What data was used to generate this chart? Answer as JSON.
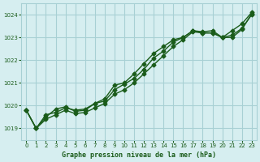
{
  "title": "Graphe pression niveau de la mer (hPa)",
  "background_color": "#d6eef0",
  "grid_color": "#a8d0d4",
  "line_color": "#1a5c1a",
  "xlim": [
    -0.5,
    23.5
  ],
  "ylim": [
    1018.5,
    1024.5
  ],
  "yticks": [
    1019,
    1020,
    1021,
    1022,
    1023,
    1024
  ],
  "xticks": [
    0,
    1,
    2,
    3,
    4,
    5,
    6,
    7,
    8,
    9,
    10,
    11,
    12,
    13,
    14,
    15,
    16,
    17,
    18,
    19,
    20,
    21,
    22,
    23
  ],
  "line1": [
    1019.8,
    1019.0,
    1019.6,
    1019.7,
    1019.9,
    1019.8,
    1019.85,
    1020.1,
    1020.3,
    1020.9,
    1021.0,
    1021.4,
    1021.85,
    1022.3,
    1022.6,
    1022.9,
    1023.0,
    1023.3,
    1023.2,
    1023.2,
    1023.0,
    1023.3,
    1023.6,
    1024.1
  ],
  "line2": [
    1019.8,
    1019.0,
    1019.5,
    1019.85,
    1019.95,
    1019.75,
    1019.8,
    1020.1,
    1020.2,
    1020.7,
    1020.95,
    1021.2,
    1021.6,
    1022.1,
    1022.4,
    1022.8,
    1023.0,
    1023.3,
    1023.25,
    1023.3,
    1023.0,
    1023.0,
    1023.35,
    1024.05
  ],
  "line3": [
    1019.8,
    1019.0,
    1019.4,
    1019.6,
    1019.8,
    1019.65,
    1019.7,
    1019.9,
    1020.1,
    1020.5,
    1020.7,
    1021.0,
    1021.4,
    1021.8,
    1022.2,
    1022.6,
    1022.9,
    1023.25,
    1023.2,
    1023.2,
    1023.0,
    1023.1,
    1023.4,
    1024.0
  ],
  "marker": "D",
  "markersize": 2.5,
  "linewidth": 1.0
}
